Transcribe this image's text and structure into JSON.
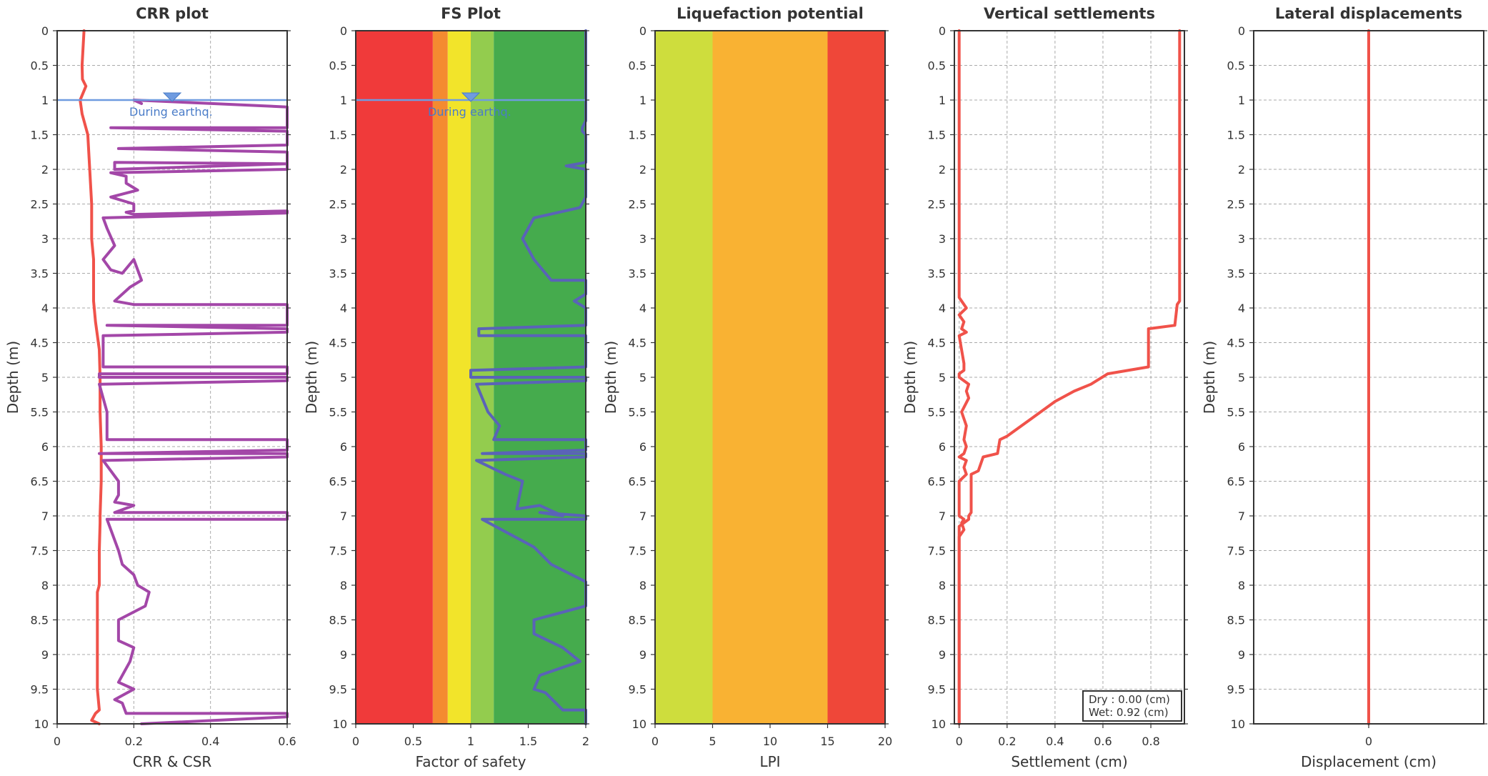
{
  "chart_data": [
    {
      "type": "line",
      "title": "CRR plot",
      "xlabel": "CRR & CSR",
      "ylabel": "Depth (m)",
      "xlim": [
        0,
        0.6
      ],
      "ylim": [
        0,
        10
      ],
      "xticks": [
        "0",
        "0.2",
        "0.4",
        "0.6"
      ],
      "yticks": [
        "0",
        "0.5",
        "1",
        "1.5",
        "2",
        "2.5",
        "3",
        "3.5",
        "4",
        "4.5",
        "5",
        "5.5",
        "6",
        "6.5",
        "7",
        "7.5",
        "8",
        "8.5",
        "9",
        "9.5",
        "10"
      ],
      "water_table": {
        "depth": 1,
        "label": "During earthq.",
        "marker_x": 0.3
      },
      "series": [
        {
          "color": "#f0524a",
          "x": [
            0.07,
            0.065,
            0.066,
            0.075,
            0.06,
            0.065,
            0.08,
            0.085,
            0.09,
            0.09,
            0.095,
            0.095,
            0.1,
            0.11,
            0.112,
            0.112,
            0.115,
            0.115,
            0.112,
            0.112,
            0.11,
            0.11,
            0.105,
            0.105,
            0.105,
            0.105,
            0.11,
            0.1,
            0.09,
            0.11
          ],
          "y": [
            0,
            0.5,
            0.7,
            0.8,
            1.0,
            1.2,
            1.5,
            2.0,
            2.5,
            3.0,
            3.3,
            3.9,
            4.2,
            4.6,
            5.0,
            5.5,
            6.0,
            6.5,
            7.0,
            7.1,
            7.5,
            8.0,
            8.1,
            8.5,
            9.0,
            9.5,
            9.8,
            9.85,
            9.95,
            10.0
          ]
        },
        {
          "color": "#a347a8",
          "x": [
            0.22,
            0.2,
            0.6,
            0.6,
            0.14,
            0.6,
            0.6,
            0.16,
            0.6,
            0.6,
            0.15,
            0.15,
            0.6,
            0.6,
            0.14,
            0.14,
            0.18,
            0.18,
            0.21,
            0.14,
            0.2,
            0.2,
            0.18,
            0.2,
            0.6,
            0.6,
            0.12,
            0.13,
            0.15,
            0.12,
            0.14,
            0.17,
            0.2,
            0.22,
            0.19,
            0.15,
            0.2,
            0.6,
            0.6,
            0.13,
            0.6,
            0.6,
            0.12,
            0.12,
            0.6,
            0.6,
            0.11,
            0.11,
            0.6,
            0.6,
            0.11,
            0.13,
            0.13,
            0.13,
            0.6,
            0.6,
            0.11,
            0.6,
            0.6,
            0.12,
            0.16,
            0.16,
            0.15,
            0.2,
            0.15,
            0.6,
            0.6,
            0.13,
            0.16,
            0.17,
            0.2,
            0.21,
            0.24,
            0.23,
            0.16,
            0.16,
            0.2,
            0.19,
            0.16,
            0.2,
            0.15,
            0.17,
            0.18,
            0.6,
            0.6,
            0.22
          ],
          "y": [
            1.05,
            1.0,
            1.1,
            1.4,
            1.4,
            1.45,
            1.65,
            1.7,
            1.75,
            1.92,
            1.9,
            2.0,
            1.92,
            2.0,
            2.05,
            2.05,
            2.1,
            2.2,
            2.3,
            2.4,
            2.5,
            2.6,
            2.62,
            2.65,
            2.6,
            2.63,
            2.7,
            2.85,
            3.1,
            3.3,
            3.45,
            3.5,
            3.3,
            3.6,
            3.7,
            3.9,
            3.95,
            3.95,
            4.25,
            4.25,
            4.3,
            4.35,
            4.4,
            4.85,
            4.85,
            4.95,
            4.95,
            5.0,
            5.0,
            5.05,
            5.1,
            5.5,
            5.8,
            5.9,
            5.9,
            6.05,
            6.1,
            6.1,
            6.15,
            6.2,
            6.5,
            6.7,
            6.8,
            6.85,
            6.95,
            6.95,
            7.05,
            7.05,
            7.5,
            7.7,
            7.85,
            8.0,
            8.1,
            8.3,
            8.5,
            8.8,
            8.9,
            9.1,
            9.4,
            9.5,
            9.65,
            9.7,
            9.85,
            9.85,
            9.9,
            10.0
          ]
        }
      ]
    },
    {
      "type": "line",
      "title": "FS Plot",
      "xlabel": "Factor of safety",
      "ylabel": "Depth (m)",
      "xlim": [
        0,
        2
      ],
      "ylim": [
        0,
        10
      ],
      "xticks": [
        "0",
        "0.5",
        "1",
        "1.5",
        "2"
      ],
      "yticks": [
        "0",
        "0.5",
        "1",
        "1.5",
        "2",
        "2.5",
        "3",
        "3.5",
        "4",
        "4.5",
        "5",
        "5.5",
        "6",
        "6.5",
        "7",
        "7.5",
        "8",
        "8.5",
        "9",
        "9.5",
        "10"
      ],
      "water_table": {
        "depth": 1,
        "label": "During earthq.",
        "marker_x": 1.0
      },
      "bands": [
        {
          "from": 0,
          "to": 0.67,
          "color": "#f03a3a"
        },
        {
          "from": 0.67,
          "to": 0.8,
          "color": "#f48b30"
        },
        {
          "from": 0.8,
          "to": 1.0,
          "color": "#f2e42a"
        },
        {
          "from": 1.0,
          "to": 1.2,
          "color": "#93cc4e"
        },
        {
          "from": 1.2,
          "to": 2,
          "color": "#45ab4d"
        }
      ],
      "series": [
        {
          "color": "#5a63b8",
          "x": [
            2,
            2,
            1.97,
            1.97,
            2,
            2,
            1.83,
            2,
            2,
            1.95,
            1.55,
            1.45,
            1.55,
            1.65,
            1.7,
            2,
            2,
            1.9,
            2,
            2,
            1.07,
            1.07,
            2,
            2,
            1.0,
            1.0,
            2,
            2,
            1.05,
            1.15,
            1.25,
            1.2,
            2,
            2,
            1.1,
            2,
            2,
            1.05,
            1.3,
            1.45,
            1.4,
            1.6,
            1.8,
            1.6,
            2,
            2,
            1.1,
            1.55,
            1.7,
            2,
            2,
            1.55,
            1.55,
            1.8,
            1.95,
            1.6,
            1.55,
            1.65,
            1.8,
            2,
            2
          ],
          "y": [
            0,
            1.3,
            1.4,
            1.45,
            1.5,
            1.9,
            1.95,
            2.0,
            2.4,
            2.55,
            2.7,
            3.0,
            3.3,
            3.5,
            3.6,
            3.6,
            3.8,
            3.9,
            4.0,
            4.25,
            4.3,
            4.4,
            4.4,
            4.85,
            4.9,
            5.0,
            5.0,
            5.05,
            5.1,
            5.5,
            5.7,
            5.9,
            5.9,
            6.05,
            6.1,
            6.1,
            6.15,
            6.2,
            6.4,
            6.5,
            6.9,
            6.85,
            7.0,
            6.95,
            7.0,
            7.05,
            7.05,
            7.45,
            7.7,
            7.95,
            8.3,
            8.5,
            8.7,
            8.9,
            9.1,
            9.3,
            9.5,
            9.55,
            9.8,
            9.8,
            10.0
          ]
        }
      ]
    },
    {
      "type": "area",
      "title": "Liquefaction potential",
      "xlabel": "LPI",
      "ylabel": "Depth (m)",
      "xlim": [
        0,
        20
      ],
      "ylim": [
        0,
        10
      ],
      "xticks": [
        "0",
        "5",
        "10",
        "15",
        "20"
      ],
      "yticks": [
        "0",
        "0.5",
        "1",
        "1.5",
        "2",
        "2.5",
        "3",
        "3.5",
        "4",
        "4.5",
        "5",
        "5.5",
        "6",
        "6.5",
        "7",
        "7.5",
        "8",
        "8.5",
        "9",
        "9.5",
        "10"
      ],
      "bands": [
        {
          "from": 0,
          "to": 5,
          "color": "#cedd3d"
        },
        {
          "from": 5,
          "to": 15,
          "color": "#f9b233"
        },
        {
          "from": 15,
          "to": 20,
          "color": "#ef4739"
        }
      ]
    },
    {
      "type": "line",
      "title": "Vertical settlements",
      "xlabel": "Settlement (cm)",
      "ylabel": "Depth (m)",
      "xlim": [
        -0.02,
        0.94
      ],
      "ylim": [
        0,
        10
      ],
      "xticks": [
        "0",
        "0.2",
        "0.4",
        "0.6",
        "0.8"
      ],
      "xtick_values": [
        0,
        0.2,
        0.4,
        0.6,
        0.8
      ],
      "yticks": [
        "0",
        "0.5",
        "1",
        "1.5",
        "2",
        "2.5",
        "3",
        "3.5",
        "4",
        "4.5",
        "5",
        "5.5",
        "6",
        "6.5",
        "7",
        "7.5",
        "8",
        "8.5",
        "9",
        "9.5",
        "10"
      ],
      "legend": {
        "position": "bottom-right",
        "lines": [
          "Dry : 0.00 (cm)",
          "Wet: 0.92 (cm)"
        ]
      },
      "series": [
        {
          "color": "#f0524a",
          "x": [
            0.92,
            0.92,
            0.91,
            0.9,
            0.79,
            0.79,
            0.62,
            0.55,
            0.48,
            0.4,
            0.3,
            0.2,
            0.17,
            0.16,
            0.1,
            0.09,
            0.08,
            0.05,
            0.05,
            0.04,
            0.04,
            0.0,
            0.0,
            0.0
          ],
          "y": [
            0,
            3.9,
            3.95,
            4.25,
            4.3,
            4.85,
            4.95,
            5.1,
            5.2,
            5.35,
            5.6,
            5.85,
            5.9,
            6.1,
            6.15,
            6.25,
            6.35,
            6.4,
            6.95,
            7.0,
            7.05,
            7.15,
            7.2,
            10.0
          ]
        },
        {
          "color": "#f0524a",
          "x": [
            0.0,
            0.0,
            0.01,
            0.03,
            0.0,
            0.02,
            0.01,
            0.03,
            0.0,
            0.02,
            0.02,
            0.0,
            0.0,
            0.02,
            0.04,
            0.03,
            0.04,
            0.01,
            0.03,
            0.02,
            0.03,
            0.02,
            0.0,
            0.03,
            0.02,
            0.03,
            0.0,
            0.0,
            0.02,
            0.01,
            0.02,
            0.0,
            0.0
          ],
          "y": [
            0,
            3.85,
            3.9,
            4.0,
            4.1,
            4.2,
            4.3,
            4.35,
            4.4,
            4.8,
            4.9,
            4.95,
            5.0,
            5.05,
            5.1,
            5.2,
            5.3,
            5.5,
            5.7,
            5.9,
            6.0,
            6.1,
            6.15,
            6.2,
            6.3,
            6.4,
            6.5,
            7.0,
            7.05,
            7.1,
            7.2,
            7.3,
            10.0
          ]
        }
      ]
    },
    {
      "type": "line",
      "title": "Lateral displacements",
      "xlabel": "Displacement (cm)",
      "ylabel": "Depth (m)",
      "xlim": [
        -1,
        1
      ],
      "ylim": [
        0,
        10
      ],
      "xticks": [
        "0"
      ],
      "xtick_values": [
        0
      ],
      "yticks": [
        "0",
        "0.5",
        "1",
        "1.5",
        "2",
        "2.5",
        "3",
        "3.5",
        "4",
        "4.5",
        "5",
        "5.5",
        "6",
        "6.5",
        "7",
        "7.5",
        "8",
        "8.5",
        "9",
        "9.5",
        "10"
      ],
      "series": [
        {
          "color": "#f0524a",
          "x": [
            0,
            0
          ],
          "y": [
            0,
            10
          ]
        }
      ]
    }
  ]
}
